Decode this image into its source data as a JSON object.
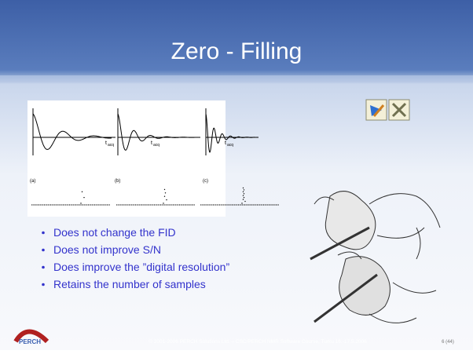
{
  "slide": {
    "title": "Zero - Filling",
    "panels": [
      {
        "label": "(a)",
        "t": "t",
        "sub": "acq"
      },
      {
        "label": "(b)",
        "t": "t",
        "sub": "acq"
      },
      {
        "label": "(c)",
        "t": "t",
        "sub": "acq"
      }
    ],
    "bullets": [
      "Does not change the FID",
      "Does not improve S/N",
      "Does improve the ”digital resolution”",
      "Retains the number of samples"
    ],
    "logo": "PERCH",
    "footer": "© 2001-2006 PERCH Solutions Ltd. – CSC/PERCH NMR Software Course, Turku 16.-17.5.2006",
    "page": "6 (44)"
  }
}
